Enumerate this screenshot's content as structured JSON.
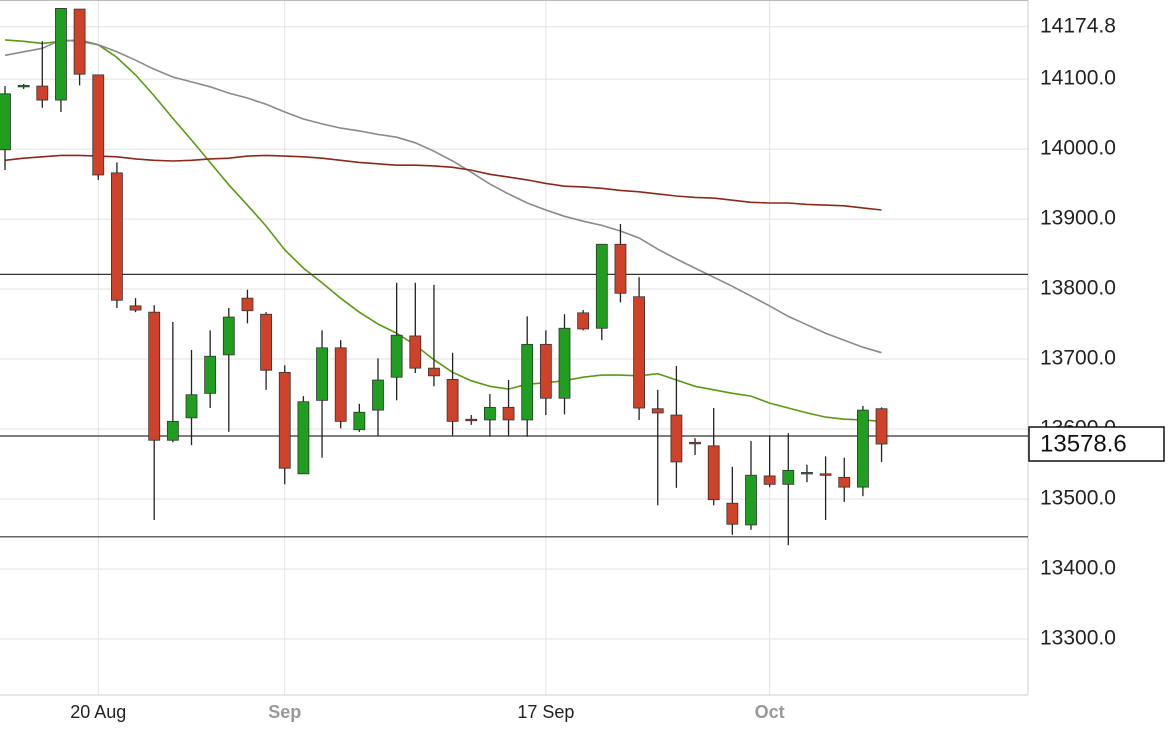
{
  "chart_data": {
    "type": "candlestick",
    "categories": [
      null,
      null,
      null,
      null,
      null,
      "20 Aug",
      null,
      null,
      null,
      null,
      null,
      null,
      null,
      null,
      null,
      "Sep",
      null,
      null,
      null,
      null,
      null,
      null,
      null,
      null,
      null,
      null,
      null,
      null,
      null,
      "17 Sep",
      null,
      null,
      null,
      null,
      null,
      null,
      null,
      null,
      null,
      null,
      null,
      "Oct",
      null,
      null,
      null,
      null,
      null,
      null
    ],
    "open": [
      13999,
      14089,
      14090,
      14070,
      14200,
      14106,
      13966,
      13776,
      13767,
      13584,
      13616,
      13651,
      13706,
      13787,
      13764,
      13681,
      13536,
      13641,
      13716,
      13599,
      13627,
      13674,
      13733,
      13687,
      13671,
      13614,
      13613,
      13631,
      13613,
      13721,
      13644,
      13766,
      13744,
      13864,
      13789,
      13629,
      13620,
      13581,
      13576,
      13494,
      13463,
      13533,
      13521,
      13536,
      13536,
      13531,
      13517,
      13629
    ],
    "high": [
      14090,
      14093,
      14154,
      14201,
      14200,
      14106,
      13981,
      13787,
      13777,
      13753,
      13713,
      13741,
      13773,
      13799,
      13767,
      13691,
      13647,
      13741,
      13727,
      13636,
      13701,
      13809,
      13809,
      13806,
      13709,
      13620,
      13650,
      13670,
      13761,
      13741,
      13764,
      13770,
      13864,
      13893,
      13817,
      13656,
      13690,
      13587,
      13630,
      13546,
      13583,
      13591,
      13594,
      13549,
      13561,
      13559,
      13633,
      13631
    ],
    "low": [
      13970,
      14086,
      14059,
      14053,
      14091,
      13956,
      13773,
      13767,
      13470,
      13581,
      13577,
      13630,
      13596,
      13751,
      13656,
      13521,
      13536,
      13559,
      13601,
      13596,
      13590,
      13641,
      13680,
      13661,
      13591,
      13606,
      13589,
      13590,
      13589,
      13620,
      13621,
      13741,
      13727,
      13781,
      13613,
      13491,
      13516,
      13563,
      13491,
      13449,
      13456,
      13517,
      13434,
      13524,
      13470,
      13496,
      13504,
      13553
    ],
    "close": [
      14079,
      14091,
      14070,
      14201,
      14107,
      13963,
      13784,
      13770,
      13584,
      13611,
      13649,
      13704,
      13760,
      13769,
      13684,
      13544,
      13639,
      13716,
      13611,
      13624,
      13670,
      13734,
      13687,
      13676,
      13611,
      13613,
      13631,
      13613,
      13721,
      13644,
      13744,
      13743,
      13864,
      13794,
      13630,
      13623,
      13553,
      13579,
      13499,
      13464,
      13534,
      13521,
      13541,
      13538,
      13534,
      13517,
      13627,
      13578.6
    ],
    "up_color": "#1f9e1f",
    "down_color": "#cf4128",
    "lines": [
      {
        "color": "#5a9a10",
        "values": [
          14156,
          14154,
          14151,
          14154,
          14156,
          14149,
          14131,
          14106,
          14076,
          14044,
          14013,
          13981,
          13949,
          13920,
          13890,
          13856,
          13830,
          13809,
          13787,
          13767,
          13750,
          13737,
          13720,
          13699,
          13681,
          13669,
          13661,
          13657,
          13664,
          13666,
          13669,
          13674,
          13677,
          13677,
          13676,
          13679,
          13670,
          13661,
          13656,
          13651,
          13647,
          13637,
          13630,
          13623,
          13617,
          13614,
          13613,
          13611
        ]
      },
      {
        "color": "#8a8a8a",
        "values": [
          14134,
          14139,
          14144,
          14156,
          14154,
          14149,
          14139,
          14127,
          14114,
          14103,
          14096,
          14089,
          14080,
          14073,
          14064,
          14053,
          14043,
          14036,
          14030,
          14026,
          14021,
          14017,
          14009,
          13997,
          13983,
          13967,
          13950,
          13936,
          13923,
          13913,
          13904,
          13897,
          13891,
          13883,
          13873,
          13857,
          13843,
          13830,
          13817,
          13804,
          13790,
          13776,
          13761,
          13749,
          13737,
          13727,
          13717,
          13709
        ]
      },
      {
        "color": "#8b2a1a",
        "values": [
          13984,
          13987,
          13989,
          13991,
          13991,
          13990,
          13989,
          13986,
          13984,
          13983,
          13984,
          13986,
          13987,
          13990,
          13991,
          13990,
          13989,
          13987,
          13984,
          13981,
          13979,
          13977,
          13977,
          13976,
          13974,
          13970,
          13964,
          13960,
          13956,
          13951,
          13947,
          13946,
          13944,
          13941,
          13939,
          13936,
          13933,
          13931,
          13930,
          13927,
          13924,
          13923,
          13923,
          13921,
          13920,
          13919,
          13916,
          13913
        ]
      }
    ],
    "hlines": [
      13821,
      13590,
      13446
    ],
    "last_price": 13578.6,
    "ylim": [
      13220,
      14213
    ],
    "yticks": [
      14174.8,
      {
        "value": 14100,
        "label": "14100.0"
      },
      {
        "value": 14000,
        "label": "14000.0"
      },
      {
        "value": 13900,
        "label": "13900.0"
      },
      {
        "value": 13800,
        "label": "13800.0"
      },
      {
        "value": 13700,
        "label": "13700.0"
      },
      {
        "value": 13600,
        "label": "13600.0"
      },
      {
        "value": 13500,
        "label": "13500.0"
      },
      {
        "value": 13400,
        "label": "13400.0"
      },
      {
        "value": 13300,
        "label": "13300.0"
      }
    ],
    "grid": true
  }
}
